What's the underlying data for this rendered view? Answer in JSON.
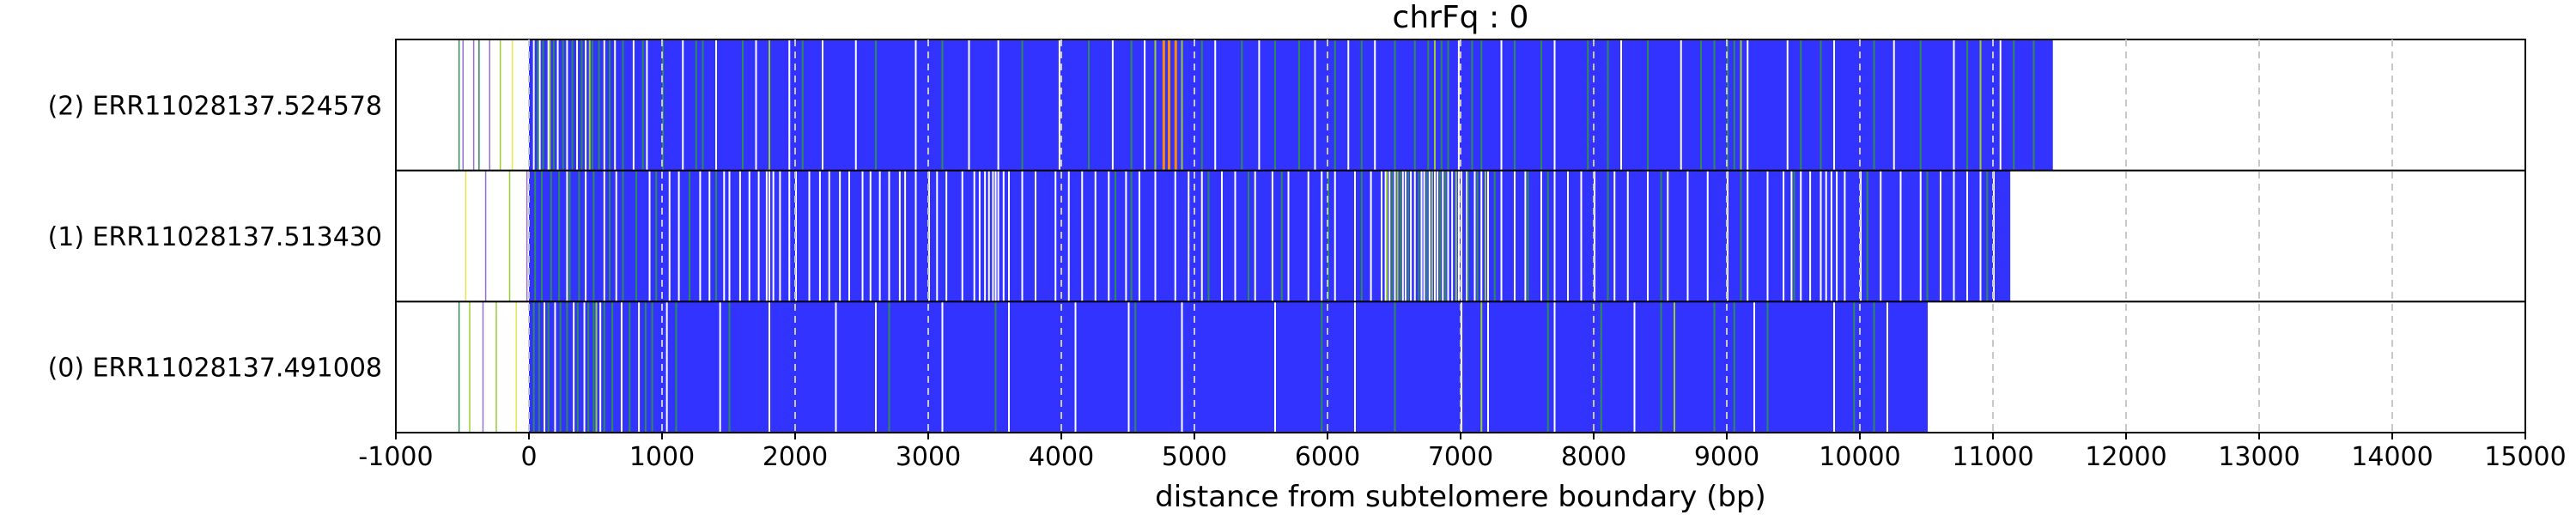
{
  "chart_data": {
    "type": "heatmap",
    "title": "chrFq : 0",
    "xlabel": "distance from subtelomere boundary (bp)",
    "ylabel": "",
    "xlim": [
      -1000,
      15000
    ],
    "xticks": [
      -1000,
      0,
      1000,
      2000,
      3000,
      4000,
      5000,
      6000,
      7000,
      8000,
      9000,
      10000,
      11000,
      12000,
      13000,
      14000,
      15000
    ],
    "xtick_labels": [
      "-1000",
      "0",
      "1000",
      "2000",
      "3000",
      "4000",
      "5000",
      "6000",
      "7000",
      "8000",
      "9000",
      "10000",
      "11000",
      "12000",
      "13000",
      "14000",
      "15000"
    ],
    "grid": "x-dashed",
    "colors": {
      "bar": "#3333ff",
      "white_gap": "#ffffff",
      "green_mark": "#2e8b57",
      "light_green_mark": "#9acd32",
      "orange_mark": "#ff8c00",
      "purple_mark": "#9370db",
      "yellow_mark": "#e6e64c",
      "grid": "#c8c8c8"
    },
    "reads": [
      {
        "label": "(2) ERR11028137.524578",
        "start": 0,
        "end": 11450,
        "pre_marks": [
          {
            "x": -530,
            "color": "#2e8b57"
          },
          {
            "x": -500,
            "color": "#9370db"
          },
          {
            "x": -420,
            "color": "#9370db"
          },
          {
            "x": -380,
            "color": "#2e8b57"
          },
          {
            "x": -300,
            "color": "#9370db"
          },
          {
            "x": -220,
            "color": "#9acd32"
          },
          {
            "x": -130,
            "color": "#e6e64c"
          }
        ],
        "white_gaps": [
          30,
          75,
          140,
          210,
          280,
          355,
          420,
          560,
          640,
          780,
          880,
          1150,
          1400,
          1700,
          1950,
          2200,
          2450,
          2900,
          3300,
          3520,
          3980,
          4380,
          4620,
          5150,
          5480,
          5900,
          6150,
          6350,
          6980,
          7300,
          7700,
          8200,
          8650,
          9150,
          9450,
          9800,
          10250,
          10700,
          11050
        ],
        "green_marks": [
          60,
          100,
          180,
          250,
          320,
          390,
          470,
          520,
          600,
          700,
          850,
          1000,
          1250,
          1300,
          1600,
          2050,
          2600,
          3100,
          3700,
          4200,
          4520,
          4800,
          5050,
          5350,
          5600,
          5780,
          6050,
          6250,
          6500,
          6650,
          6750,
          6850,
          6900,
          7080,
          7150,
          7400,
          7600,
          7950,
          8100,
          8400,
          8800,
          8900,
          9000,
          9050,
          9550,
          9700,
          10100,
          10450,
          10800,
          11150,
          11300
        ],
        "orange_marks": [
          4760,
          4800,
          4850
        ],
        "light_green_marks": [
          150,
          450,
          1800,
          4700,
          4900,
          6800,
          9100,
          10900
        ]
      },
      {
        "label": "(1) ERR11028137.513430",
        "start": 0,
        "end": 11130,
        "pre_marks": [
          {
            "x": -480,
            "color": "#e6e64c"
          },
          {
            "x": -330,
            "color": "#9370db"
          },
          {
            "x": -150,
            "color": "#9acd32"
          },
          {
            "x": -20,
            "color": "#9370db"
          }
        ],
        "white_gaps": [
          280,
          420,
          560,
          650,
          900,
          1050,
          1120,
          1280,
          1350,
          1460,
          1500,
          1580,
          1650,
          1720,
          1780,
          1800,
          1830,
          1880,
          1950,
          2000,
          2100,
          2180,
          2250,
          2330,
          2400,
          2500,
          2560,
          2630,
          2700,
          2780,
          2820,
          2900,
          3000,
          3060,
          3130,
          3250,
          3340,
          3380,
          3420,
          3450,
          3480,
          3500,
          3520,
          3560,
          3600,
          3700,
          3800,
          3950,
          4050,
          4150,
          4250,
          4350,
          4480,
          4580,
          4700,
          4850,
          4950,
          5050,
          5200,
          5300,
          5450,
          5580,
          5700,
          5850,
          5950,
          6050,
          6200,
          6320,
          6400,
          6430,
          6460,
          6500,
          6560,
          6580,
          6620,
          6650,
          6700,
          6720,
          6760,
          6800,
          6820,
          6860,
          6900,
          6930,
          6980,
          7000,
          7040,
          7100,
          7150,
          7200,
          7300,
          7400,
          7480,
          7600,
          7700,
          7800,
          7900,
          8000,
          8150,
          8250,
          8400,
          8550,
          8700,
          8850,
          9000,
          9150,
          9300,
          9420,
          9480,
          9550,
          9620,
          9700,
          9740,
          9780,
          9820,
          9880,
          10000,
          10150,
          10300,
          10450,
          10600,
          10700,
          10800,
          10900,
          11000
        ],
        "green_marks": [
          40,
          90,
          160,
          220,
          300,
          370,
          480,
          600,
          700,
          800,
          950,
          1200,
          1400,
          4400,
          4520,
          5100,
          5400,
          5650,
          6000,
          6250,
          6480,
          6540,
          6600,
          6680,
          6740,
          6840,
          6880,
          7050,
          7120,
          7250,
          7500,
          7650,
          8100,
          8500,
          9100,
          9500,
          10050,
          10500,
          10950
        ],
        "orange_marks": [],
        "light_green_marks": [
          6440,
          6520,
          6780,
          6960,
          7180
        ]
      },
      {
        "label": "(0) ERR11028137.491008",
        "start": 0,
        "end": 10510,
        "pre_marks": [
          {
            "x": -530,
            "color": "#2e8b57"
          },
          {
            "x": -450,
            "color": "#9acd32"
          },
          {
            "x": -350,
            "color": "#9370db"
          },
          {
            "x": -250,
            "color": "#9acd32"
          },
          {
            "x": -100,
            "color": "#e6e64c"
          }
        ],
        "white_gaps": [
          110,
          190,
          330,
          410,
          530,
          690,
          820,
          1030,
          1430,
          1800,
          2300,
          2600,
          3100,
          3600,
          4100,
          4500,
          4900,
          5600,
          6200,
          7000,
          7200,
          7700,
          8300,
          9200,
          9800,
          10200
        ],
        "green_marks": [
          30,
          70,
          140,
          230,
          280,
          360,
          440,
          480,
          560,
          620,
          750,
          870,
          920,
          1100,
          1500,
          2700,
          3500,
          4550,
          5950,
          6500,
          7650,
          8050,
          8500,
          8900,
          9050,
          9300,
          9950,
          10100
        ],
        "orange_marks": [],
        "light_green_marks": [
          500,
          7150,
          8600
        ]
      }
    ]
  }
}
